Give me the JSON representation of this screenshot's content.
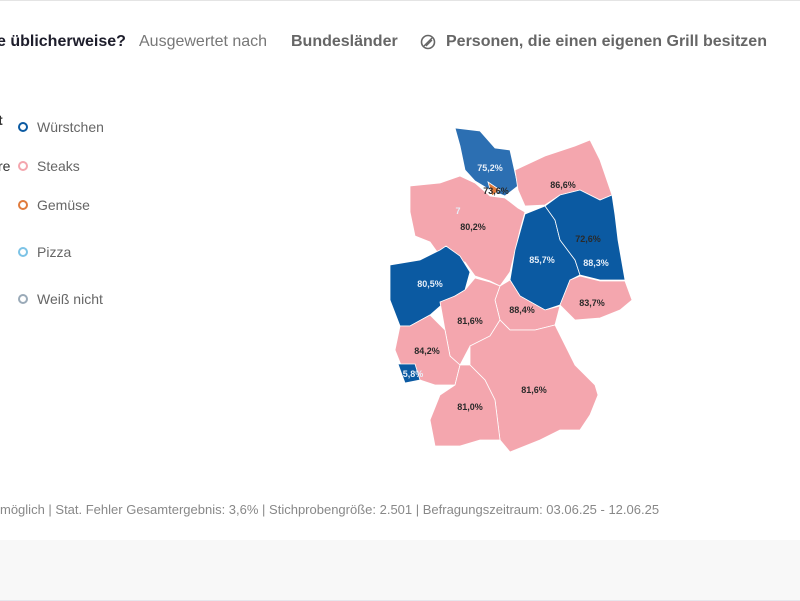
{
  "header": {
    "question_fragment": "e üblicherweise?",
    "evaluated_by_label": "Ausgewertet nach",
    "evaluated_by_value": "Bundesländer",
    "filter_icon": "filter-circle-slash-icon",
    "filter_label": "Personen, die einen eigenen Grill besitzen"
  },
  "left_cut": [
    "t",
    "re"
  ],
  "legend": [
    {
      "label": "Würstchen",
      "color": "#0b5aa2"
    },
    {
      "label": "Steaks",
      "color": "#f4a6ae"
    },
    {
      "label": "Gemüse",
      "color": "#e07b3c"
    },
    {
      "label": "Pizza",
      "color": "#7cc3e6"
    },
    {
      "label": "Weiß nicht",
      "color": "#9aaab8"
    }
  ],
  "chart_data": {
    "type": "choropleth",
    "regions": [
      {
        "state": "Schleswig-Holstein",
        "winner": "Würstchen",
        "value": "75,2%"
      },
      {
        "state": "Hamburg",
        "winner": "Gemüse",
        "value": "73,6%"
      },
      {
        "state": "Mecklenburg-Vorpommern",
        "winner": "Steaks",
        "value": "86,6%"
      },
      {
        "state": "Bremen",
        "winner": "Würstchen",
        "value": "7"
      },
      {
        "state": "Niedersachsen",
        "winner": "Steaks",
        "value": "80,2%"
      },
      {
        "state": "Berlin",
        "winner": "Steaks",
        "value": "72,6%"
      },
      {
        "state": "Sachsen-Anhalt",
        "winner": "Würstchen",
        "value": "85,7%"
      },
      {
        "state": "Brandenburg",
        "winner": "Würstchen",
        "value": "88,3%"
      },
      {
        "state": "Nordrhein-Westfalen",
        "winner": "Würstchen",
        "value": "80,5%"
      },
      {
        "state": "Thüringen",
        "winner": "Steaks",
        "value": "88,4%"
      },
      {
        "state": "Sachsen",
        "winner": "Steaks",
        "value": "83,7%"
      },
      {
        "state": "Hessen",
        "winner": "Steaks",
        "value": "81,6%"
      },
      {
        "state": "Rheinland-Pfalz",
        "winner": "Steaks",
        "value": "84,2%"
      },
      {
        "state": "Saarland",
        "winner": "Würstchen",
        "value": "5,8%"
      },
      {
        "state": "Bayern",
        "winner": "Steaks",
        "value": "81,6%"
      },
      {
        "state": "Baden-Württemberg",
        "winner": "Steaks",
        "value": "81,0%"
      }
    ]
  },
  "footer": "möglich | Stat. Fehler Gesamtergebnis: 3,6% | Stichprobengröße: 2.501 | Befragungszeitraum: 03.06.25 - 12.06.25"
}
